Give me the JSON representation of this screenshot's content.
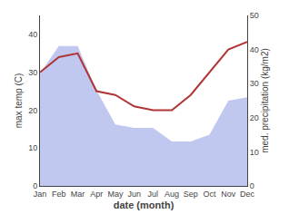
{
  "chart_data": {
    "type": "line",
    "categories": [
      "Jan",
      "Feb",
      "Mar",
      "Apr",
      "May",
      "Jun",
      "Jul",
      "Aug",
      "Sep",
      "Oct",
      "Nov",
      "Dec"
    ],
    "xlabel": "date (month)",
    "ylabel": "max temp (C)",
    "y2label": "med. precipitation (kg/m2)",
    "series": [
      {
        "type": "area",
        "axis": "y2",
        "color": "#c0c8f0",
        "values": [
          33,
          41,
          41,
          28,
          18,
          17,
          17,
          13,
          13,
          15,
          25,
          26
        ]
      },
      {
        "type": "line",
        "color": "#b03535",
        "values": [
          30,
          34,
          35,
          25,
          24,
          21,
          20,
          20,
          24,
          30,
          36,
          38
        ]
      }
    ],
    "ylim": [
      0,
      45
    ],
    "yticks": [
      0,
      10,
      20,
      30,
      40
    ],
    "y2lim": [
      0,
      50
    ],
    "y2ticks": [
      0,
      10,
      20,
      30,
      40,
      50
    ],
    "grid": false
  }
}
